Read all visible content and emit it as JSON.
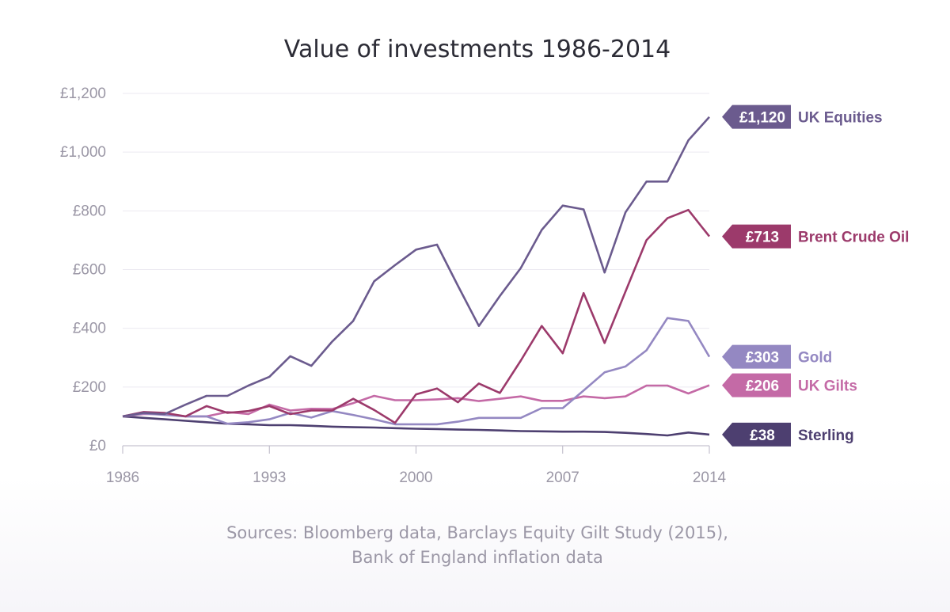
{
  "chart_data": {
    "type": "line",
    "title": "Value of investments 1986-2014",
    "xlabel": "",
    "ylabel": "",
    "ylim": [
      0,
      1200
    ],
    "xlim": [
      1986,
      2014
    ],
    "grid": true,
    "x_ticks": [
      "1986",
      "1993",
      "2000",
      "2007",
      "2014"
    ],
    "y_ticks": [
      "£0",
      "£200",
      "£400",
      "£600",
      "£800",
      "£1,000",
      "£1,200"
    ],
    "x": [
      1986,
      1987,
      1988,
      1989,
      1990,
      1991,
      1992,
      1993,
      1994,
      1995,
      1996,
      1997,
      1998,
      1999,
      2000,
      2001,
      2002,
      2003,
      2004,
      2005,
      2006,
      2007,
      2008,
      2009,
      2010,
      2011,
      2012,
      2013,
      2014
    ],
    "series": [
      {
        "name": "UK Equities",
        "end_label": "£1,120",
        "color": "#6b5b8e",
        "values": [
          100,
          112,
          108,
          140,
          170,
          170,
          205,
          235,
          305,
          272,
          355,
          425,
          560,
          615,
          668,
          685,
          545,
          408,
          510,
          605,
          735,
          818,
          805,
          590,
          795,
          900,
          900,
          1040,
          1120
        ]
      },
      {
        "name": "Brent Crude Oil",
        "end_label": "£713",
        "color": "#9c3a6b",
        "values": [
          100,
          115,
          112,
          100,
          135,
          112,
          118,
          135,
          108,
          120,
          120,
          160,
          122,
          78,
          175,
          195,
          148,
          212,
          180,
          290,
          408,
          315,
          520,
          350,
          525,
          700,
          775,
          803,
          713
        ]
      },
      {
        "name": "Gold",
        "end_label": "£303",
        "color": "#9488c2",
        "values": [
          100,
          110,
          105,
          100,
          100,
          75,
          80,
          90,
          112,
          96,
          118,
          105,
          90,
          73,
          73,
          73,
          82,
          95,
          95,
          95,
          128,
          128,
          188,
          250,
          270,
          325,
          435,
          425,
          303
        ]
      },
      {
        "name": "UK Gilts",
        "end_label": "£206",
        "color": "#c46aa6",
        "values": [
          100,
          108,
          108,
          100,
          100,
          115,
          108,
          140,
          120,
          126,
          125,
          145,
          170,
          155,
          155,
          158,
          162,
          152,
          160,
          168,
          153,
          153,
          168,
          162,
          168,
          205,
          205,
          178,
          206
        ]
      },
      {
        "name": "Sterling",
        "end_label": "£38",
        "color": "#4d3f70",
        "values": [
          100,
          95,
          90,
          85,
          80,
          75,
          73,
          70,
          70,
          68,
          65,
          63,
          62,
          60,
          58,
          57,
          55,
          54,
          52,
          50,
          49,
          48,
          48,
          47,
          44,
          40,
          35,
          45,
          38
        ]
      }
    ]
  },
  "source_lines": [
    "Sources: Bloomberg data, Barclays Equity Gilt Study (2015),",
    "Bank of England inflation data"
  ]
}
